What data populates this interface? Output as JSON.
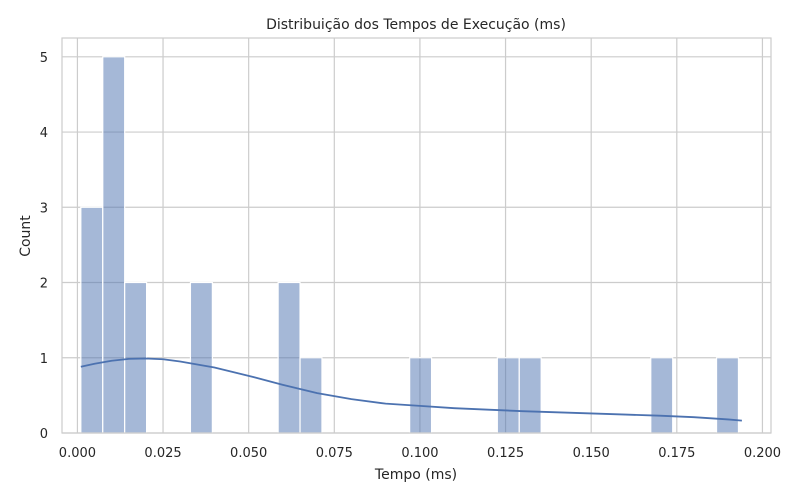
{
  "chart_data": {
    "type": "bar",
    "subtype": "histogram-with-kde",
    "title": "Distribuição dos Tempos de Execução (ms)",
    "xlabel": "Tempo (ms)",
    "ylabel": "Count",
    "xlim": [
      -0.0045,
      0.2025
    ],
    "ylim": [
      0,
      5.25
    ],
    "xticks": [
      0.0,
      0.025,
      0.05,
      0.075,
      0.1,
      0.125,
      0.15,
      0.175,
      0.2
    ],
    "xtick_labels": [
      "0.000",
      "0.025",
      "0.050",
      "0.075",
      "0.100",
      "0.125",
      "0.150",
      "0.175",
      "0.200"
    ],
    "yticks": [
      0,
      1,
      2,
      3,
      4,
      5
    ],
    "ytick_labels": [
      "0",
      "1",
      "2",
      "3",
      "4",
      "5"
    ],
    "grid": true,
    "bar_color": "#4c72b0",
    "bins": [
      {
        "x0": 0.001,
        "x1": 0.0074,
        "count": 3
      },
      {
        "x0": 0.0074,
        "x1": 0.0138,
        "count": 5
      },
      {
        "x0": 0.0138,
        "x1": 0.0202,
        "count": 2
      },
      {
        "x0": 0.033,
        "x1": 0.0394,
        "count": 2
      },
      {
        "x0": 0.0586,
        "x1": 0.065,
        "count": 2
      },
      {
        "x0": 0.065,
        "x1": 0.0714,
        "count": 1
      },
      {
        "x0": 0.097,
        "x1": 0.1034,
        "count": 1
      },
      {
        "x0": 0.1226,
        "x1": 0.129,
        "count": 1
      },
      {
        "x0": 0.129,
        "x1": 0.1354,
        "count": 1
      },
      {
        "x0": 0.1674,
        "x1": 0.1738,
        "count": 1
      },
      {
        "x0": 0.1866,
        "x1": 0.193,
        "count": 1
      }
    ],
    "kde": {
      "x": [
        0.001,
        0.005,
        0.01,
        0.015,
        0.02,
        0.025,
        0.03,
        0.04,
        0.05,
        0.06,
        0.07,
        0.08,
        0.09,
        0.1,
        0.11,
        0.12,
        0.13,
        0.14,
        0.15,
        0.16,
        0.17,
        0.18,
        0.19,
        0.194
      ],
      "y": [
        0.88,
        0.92,
        0.96,
        0.985,
        0.99,
        0.98,
        0.95,
        0.87,
        0.76,
        0.64,
        0.53,
        0.45,
        0.39,
        0.36,
        0.33,
        0.31,
        0.29,
        0.275,
        0.26,
        0.245,
        0.23,
        0.21,
        0.18,
        0.165
      ]
    }
  }
}
